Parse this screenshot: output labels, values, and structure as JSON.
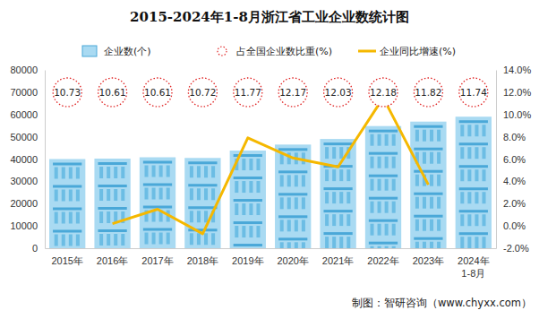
{
  "chart_data": {
    "type": "bar",
    "title": "2015-2024年1-8月浙江省工业企业数统计图",
    "categories": [
      "2015年",
      "2016年",
      "2017年",
      "2018年",
      "2019年",
      "2020年",
      "2021年",
      "2022年",
      "2023年",
      "2024年\n1-8月"
    ],
    "series": [
      {
        "name": "企业数(个)",
        "type": "bar",
        "color": "#a9daf2",
        "values": [
          40000,
          40200,
          40800,
          40500,
          43800,
          46500,
          49000,
          54800,
          56800,
          59000
        ]
      },
      {
        "name": "占全国企业数比重(%)",
        "type": "scatter",
        "marker": "circle",
        "line_style": "dotted",
        "color": "#e02424",
        "data_labels": true,
        "values": [
          10.73,
          10.61,
          10.61,
          10.72,
          11.77,
          12.17,
          12.03,
          12.18,
          11.82,
          11.74
        ]
      },
      {
        "name": "企业同比增速(%)",
        "type": "line",
        "axis": "y2",
        "color": "#f5b800",
        "values": [
          null,
          0.2,
          1.5,
          -0.7,
          7.9,
          6.1,
          5.3,
          11.5,
          3.7,
          null
        ]
      }
    ],
    "ylim": [
      0,
      80000
    ],
    "yticks": [
      0,
      10000,
      20000,
      30000,
      40000,
      50000,
      60000,
      70000,
      80000
    ],
    "y2lim": [
      -2,
      14
    ],
    "y2ticks": [
      {
        "value": -2,
        "label": "-2.0%"
      },
      {
        "value": 0,
        "label": "0.0%"
      },
      {
        "value": 2,
        "label": "2.0%"
      },
      {
        "value": 4,
        "label": "4.0%"
      },
      {
        "value": 6,
        "label": "6.0%"
      },
      {
        "value": 8,
        "label": "8.0%"
      },
      {
        "value": 10,
        "label": "10.0%"
      },
      {
        "value": 12,
        "label": "12.0%"
      },
      {
        "value": 14,
        "label": "14.0%"
      }
    ],
    "grid": false,
    "legend": "top",
    "annotations": [
      "制图：智研咨询（www.chyxx.com）"
    ]
  }
}
